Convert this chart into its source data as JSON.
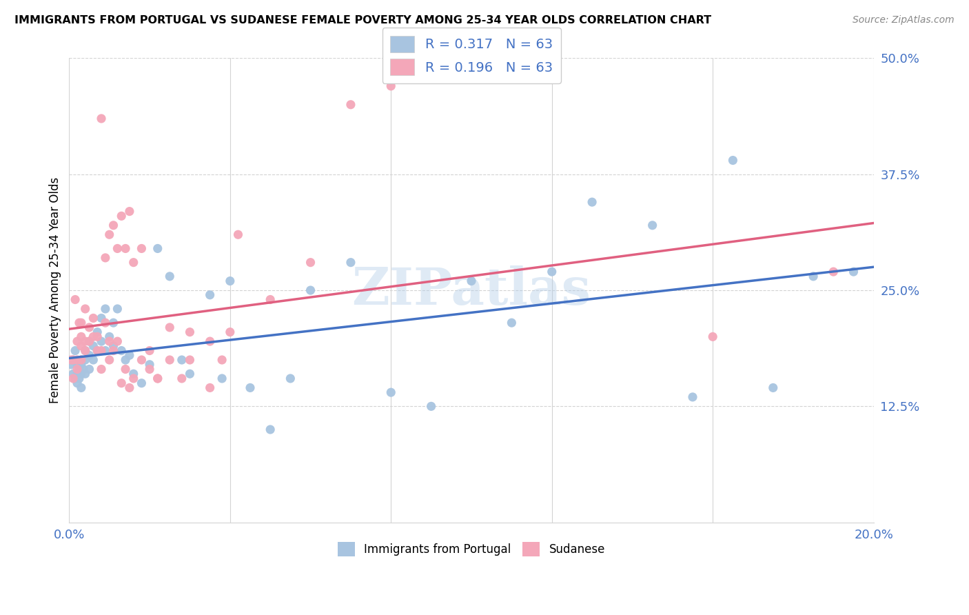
{
  "title": "IMMIGRANTS FROM PORTUGAL VS SUDANESE FEMALE POVERTY AMONG 25-34 YEAR OLDS CORRELATION CHART",
  "source": "Source: ZipAtlas.com",
  "ylabel": "Female Poverty Among 25-34 Year Olds",
  "yticks": [
    "12.5%",
    "25.0%",
    "37.5%",
    "50.0%"
  ],
  "ytick_vals": [
    0.125,
    0.25,
    0.375,
    0.5
  ],
  "legend_line1": "R = 0.317   N = 63",
  "legend_line2": "R = 0.196   N = 63",
  "color_portugal": "#a8c4e0",
  "color_sudanese": "#f4a7b9",
  "line_color_portugal": "#4472c4",
  "line_color_sudanese": "#e06080",
  "background_color": "#ffffff",
  "grid_color": "#d3d3d3",
  "watermark": "ZIPatlas",
  "xlim": [
    0.0,
    0.2
  ],
  "ylim": [
    0.0,
    0.5
  ],
  "portugal_x": [
    0.0005,
    0.001,
    0.001,
    0.0015,
    0.0015,
    0.002,
    0.002,
    0.002,
    0.0025,
    0.0025,
    0.003,
    0.003,
    0.003,
    0.003,
    0.0035,
    0.004,
    0.004,
    0.004,
    0.005,
    0.005,
    0.005,
    0.006,
    0.006,
    0.007,
    0.007,
    0.008,
    0.008,
    0.009,
    0.009,
    0.01,
    0.011,
    0.011,
    0.012,
    0.013,
    0.014,
    0.015,
    0.016,
    0.018,
    0.02,
    0.022,
    0.025,
    0.028,
    0.03,
    0.035,
    0.038,
    0.04,
    0.045,
    0.05,
    0.055,
    0.06,
    0.07,
    0.08,
    0.09,
    0.1,
    0.11,
    0.12,
    0.13,
    0.145,
    0.155,
    0.165,
    0.175,
    0.185,
    0.195
  ],
  "portugal_y": [
    0.17,
    0.16,
    0.175,
    0.155,
    0.185,
    0.16,
    0.17,
    0.15,
    0.165,
    0.155,
    0.175,
    0.16,
    0.145,
    0.17,
    0.165,
    0.185,
    0.175,
    0.16,
    0.195,
    0.18,
    0.165,
    0.19,
    0.175,
    0.205,
    0.185,
    0.22,
    0.195,
    0.23,
    0.185,
    0.2,
    0.215,
    0.19,
    0.23,
    0.185,
    0.175,
    0.18,
    0.16,
    0.15,
    0.17,
    0.295,
    0.265,
    0.175,
    0.16,
    0.245,
    0.155,
    0.26,
    0.145,
    0.1,
    0.155,
    0.25,
    0.28,
    0.14,
    0.125,
    0.26,
    0.215,
    0.27,
    0.345,
    0.32,
    0.135,
    0.39,
    0.145,
    0.265,
    0.27
  ],
  "sudanese_x": [
    0.0005,
    0.001,
    0.001,
    0.0015,
    0.002,
    0.002,
    0.002,
    0.0025,
    0.003,
    0.003,
    0.003,
    0.003,
    0.004,
    0.004,
    0.004,
    0.005,
    0.005,
    0.006,
    0.006,
    0.007,
    0.007,
    0.008,
    0.008,
    0.009,
    0.01,
    0.01,
    0.011,
    0.012,
    0.013,
    0.014,
    0.015,
    0.016,
    0.018,
    0.02,
    0.022,
    0.025,
    0.028,
    0.03,
    0.035,
    0.038,
    0.042,
    0.008,
    0.009,
    0.01,
    0.011,
    0.012,
    0.013,
    0.014,
    0.015,
    0.016,
    0.018,
    0.02,
    0.022,
    0.025,
    0.03,
    0.035,
    0.04,
    0.05,
    0.06,
    0.07,
    0.08,
    0.16,
    0.19
  ],
  "sudanese_y": [
    0.175,
    0.155,
    0.175,
    0.24,
    0.175,
    0.195,
    0.165,
    0.215,
    0.19,
    0.175,
    0.2,
    0.215,
    0.185,
    0.195,
    0.23,
    0.195,
    0.21,
    0.2,
    0.22,
    0.185,
    0.2,
    0.165,
    0.185,
    0.215,
    0.195,
    0.175,
    0.185,
    0.195,
    0.15,
    0.165,
    0.145,
    0.155,
    0.175,
    0.165,
    0.155,
    0.175,
    0.155,
    0.205,
    0.145,
    0.175,
    0.31,
    0.435,
    0.285,
    0.31,
    0.32,
    0.295,
    0.33,
    0.295,
    0.335,
    0.28,
    0.295,
    0.185,
    0.155,
    0.21,
    0.175,
    0.195,
    0.205,
    0.24,
    0.28,
    0.45,
    0.47,
    0.2,
    0.27
  ]
}
